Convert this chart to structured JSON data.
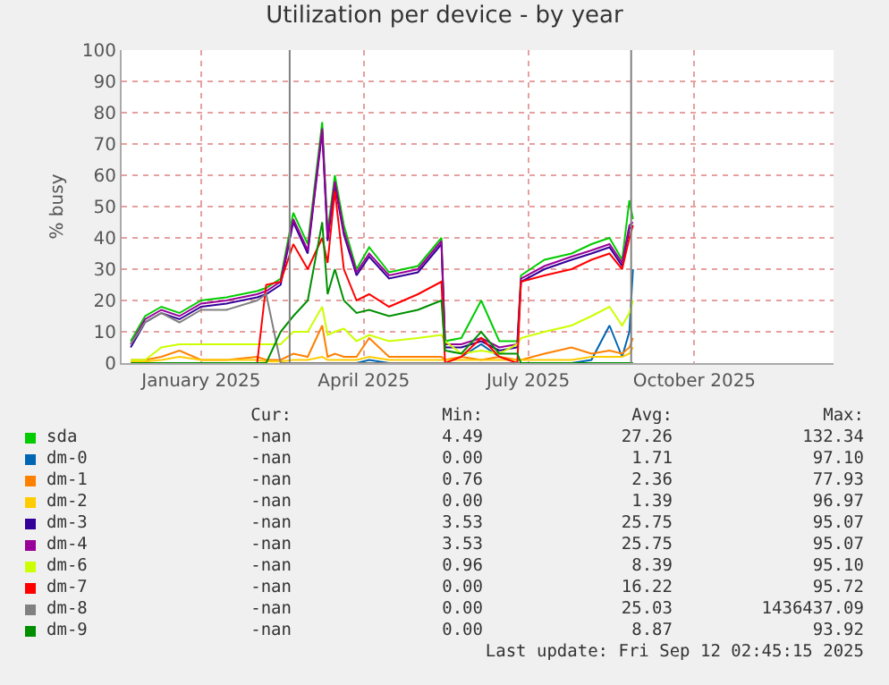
{
  "chart_data": {
    "type": "line",
    "title": "Utilization per device - by year",
    "ylabel": "% busy",
    "x": [
      "2024-11-23",
      "2024-12-01",
      "2024-12-10",
      "2024-12-20",
      "2025-01-01",
      "2025-01-15",
      "2025-02-01",
      "2025-02-06",
      "2025-02-14",
      "2025-02-21",
      "2025-03-01",
      "2025-03-09",
      "2025-03-12",
      "2025-03-16",
      "2025-03-21",
      "2025-03-28",
      "2025-04-04",
      "2025-04-15",
      "2025-05-01",
      "2025-05-14",
      "2025-05-16",
      "2025-05-25",
      "2025-06-05",
      "2025-06-15",
      "2025-06-25",
      "2025-06-27",
      "2025-07-10",
      "2025-07-25",
      "2025-08-05",
      "2025-08-15",
      "2025-08-22",
      "2025-08-26",
      "2025-08-28"
    ],
    "series": [
      {
        "name": "sda",
        "color": "#00cc00",
        "values": [
          7,
          15,
          18,
          16,
          20,
          21,
          23,
          24,
          27,
          48,
          38,
          77,
          42,
          60,
          44,
          30,
          37,
          29,
          31,
          40,
          7,
          8,
          20,
          7,
          7,
          28,
          33,
          35,
          38,
          40,
          33,
          52,
          46
        ]
      },
      {
        "name": "dm-0",
        "color": "#0066b3",
        "values": [
          null,
          null,
          null,
          null,
          null,
          null,
          null,
          null,
          null,
          null,
          null,
          null,
          null,
          null,
          null,
          0,
          1,
          0,
          null,
          null,
          null,
          2,
          6,
          2,
          null,
          null,
          null,
          0,
          1,
          12,
          2,
          10,
          30
        ]
      },
      {
        "name": "dm-1",
        "color": "#ff8000",
        "values": [
          1,
          1,
          2,
          4,
          1,
          1,
          2,
          1,
          1,
          3,
          2,
          12,
          2,
          3,
          2,
          2,
          8,
          2,
          2,
          2,
          1,
          2,
          1,
          2,
          1,
          1,
          3,
          5,
          3,
          4,
          3,
          5,
          8
        ]
      },
      {
        "name": "dm-2",
        "color": "#ffcc00",
        "values": [
          0.5,
          0.5,
          1,
          2,
          1,
          1,
          1,
          0.5,
          0.5,
          1,
          1,
          2,
          1,
          1,
          1,
          1,
          2,
          1,
          1,
          1,
          1,
          1,
          1,
          1,
          1,
          1,
          1,
          1,
          2,
          2,
          2,
          3,
          5
        ]
      },
      {
        "name": "dm-3",
        "color": "#330099",
        "values": [
          5,
          13,
          16,
          14,
          18,
          19,
          21,
          22,
          25,
          45,
          35,
          74,
          39,
          57,
          41,
          28,
          34,
          27,
          29,
          38,
          5,
          5,
          7,
          4,
          5,
          26,
          30,
          33,
          35,
          37,
          31,
          43,
          44
        ]
      },
      {
        "name": "dm-4",
        "color": "#990099",
        "values": [
          6,
          14,
          17,
          15,
          19,
          20,
          22,
          23,
          26,
          46,
          36,
          75,
          40,
          58,
          42,
          29,
          35,
          28,
          30,
          39,
          6,
          6,
          8,
          5,
          6,
          27,
          31,
          34,
          36,
          38,
          32,
          44,
          45
        ]
      },
      {
        "name": "dm-6",
        "color": "#ccff00",
        "values": [
          1,
          1,
          5,
          6,
          6,
          6,
          6,
          6,
          6,
          10,
          10,
          18,
          9,
          10,
          11,
          7,
          9,
          7,
          8,
          9,
          7,
          3,
          4,
          3,
          6,
          8,
          10,
          12,
          15,
          18,
          12,
          16,
          20
        ]
      },
      {
        "name": "dm-7",
        "color": "#ff0000",
        "values": [
          null,
          null,
          null,
          null,
          null,
          0,
          0,
          25,
          26,
          38,
          30,
          40,
          32,
          55,
          30,
          20,
          22,
          18,
          22,
          26,
          0,
          2,
          8,
          2,
          0,
          26,
          28,
          30,
          33,
          35,
          30,
          40,
          44
        ]
      },
      {
        "name": "dm-8",
        "color": "#808080",
        "values": [
          6,
          13,
          16,
          13,
          17,
          17,
          20,
          22,
          0,
          0,
          0,
          0,
          0,
          0,
          0,
          0,
          0,
          0,
          0,
          0,
          0,
          0,
          0,
          0,
          0,
          0,
          0,
          0,
          0,
          0,
          0,
          0,
          0
        ]
      },
      {
        "name": "dm-9",
        "color": "#008f00",
        "values": [
          0,
          0,
          0,
          0,
          0,
          0,
          0,
          0,
          10,
          15,
          20,
          45,
          22,
          30,
          20,
          16,
          17,
          15,
          17,
          20,
          4,
          3,
          10,
          3,
          3,
          0,
          0,
          0,
          0,
          0,
          0,
          0,
          0
        ]
      }
    ],
    "xlim": [
      "2024-11-18",
      "2025-12-17"
    ],
    "xticks": [
      {
        "value": "2025-01-01",
        "label": "January 2025"
      },
      {
        "value": "2025-04-01",
        "label": "April 2025"
      },
      {
        "value": "2025-07-01",
        "label": "July 2025"
      },
      {
        "value": "2025-10-01",
        "label": "October 2025"
      }
    ],
    "ylim": [
      0,
      100
    ],
    "yticks": [
      0,
      10,
      20,
      30,
      40,
      50,
      60,
      70,
      80,
      90,
      100
    ],
    "ref_lines": [
      {
        "axis": "x",
        "value": "2025-02-19",
        "color": "#808080"
      },
      {
        "axis": "x",
        "value": "2025-08-27",
        "color": "#808080"
      }
    ],
    "grid": true,
    "legend": "bottom",
    "marker": "none",
    "line_style": "solid",
    "annotations": [
      "Cur:",
      "Min:",
      "Avg:",
      "Max:",
      "-nan",
      "4.49",
      "27.26",
      "132.34",
      "-nan",
      "0.00",
      "1.71",
      "97.10",
      "-nan",
      "0.76",
      "2.36",
      "77.93",
      "-nan",
      "0.00",
      "1.39",
      "96.97",
      "-nan",
      "3.53",
      "25.75",
      "95.07",
      "-nan",
      "3.53",
      "25.75",
      "95.07",
      "-nan",
      "0.96",
      "8.39",
      "95.10",
      "-nan",
      "0.00",
      "16.22",
      "95.72",
      "-nan",
      "0.00",
      "25.03",
      "1436437.09",
      "-nan",
      "0.00",
      "8.87",
      "93.92",
      "Last update: Fri Sep 12 02:45:15 2025"
    ]
  }
}
